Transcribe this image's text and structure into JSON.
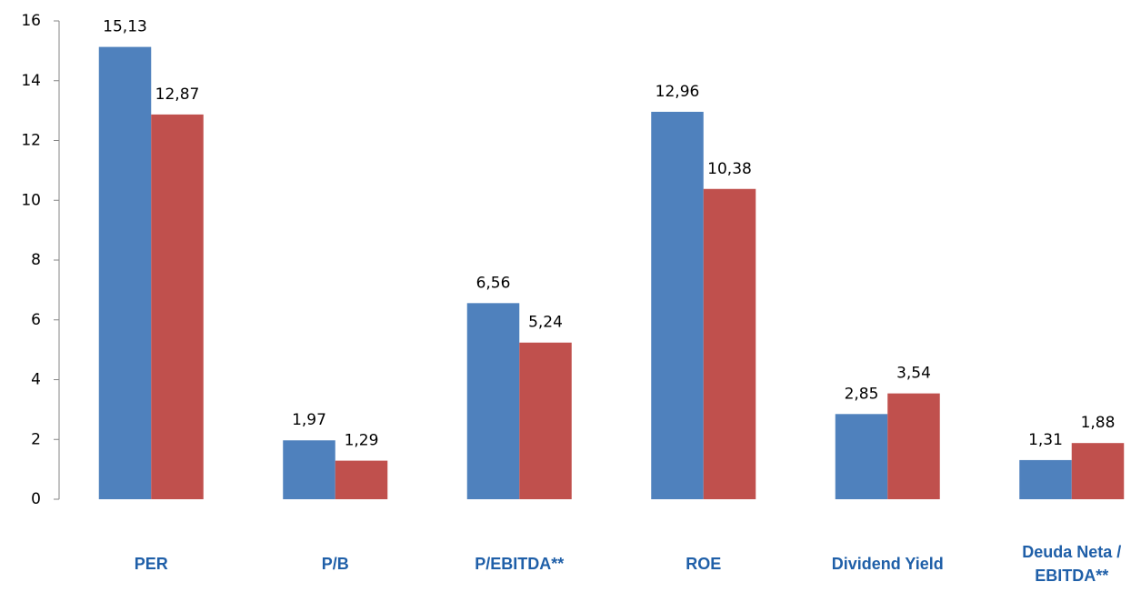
{
  "chart_data": {
    "type": "bar",
    "categories": [
      "PER",
      "P/B",
      "P/EBITDA**",
      "ROE",
      "Dividend Yield",
      "Deuda Neta / EBITDA**"
    ],
    "series": [
      {
        "color": "#4f81bd",
        "values": [
          15.13,
          1.97,
          6.56,
          12.96,
          2.85,
          1.31
        ],
        "value_labels": [
          "15,13",
          "1,97",
          "6,56",
          "12,96",
          "2,85",
          "1,31"
        ]
      },
      {
        "color": "#c0504d",
        "values": [
          12.87,
          1.29,
          5.24,
          10.38,
          3.54,
          1.88
        ],
        "value_labels": [
          "12,87",
          "1,29",
          "5,24",
          "10,38",
          "3,54",
          "1,88"
        ]
      }
    ],
    "ylim": [
      0,
      16
    ],
    "yticks": [
      0,
      2,
      4,
      6,
      8,
      10,
      12,
      14,
      16
    ],
    "grid": false
  }
}
